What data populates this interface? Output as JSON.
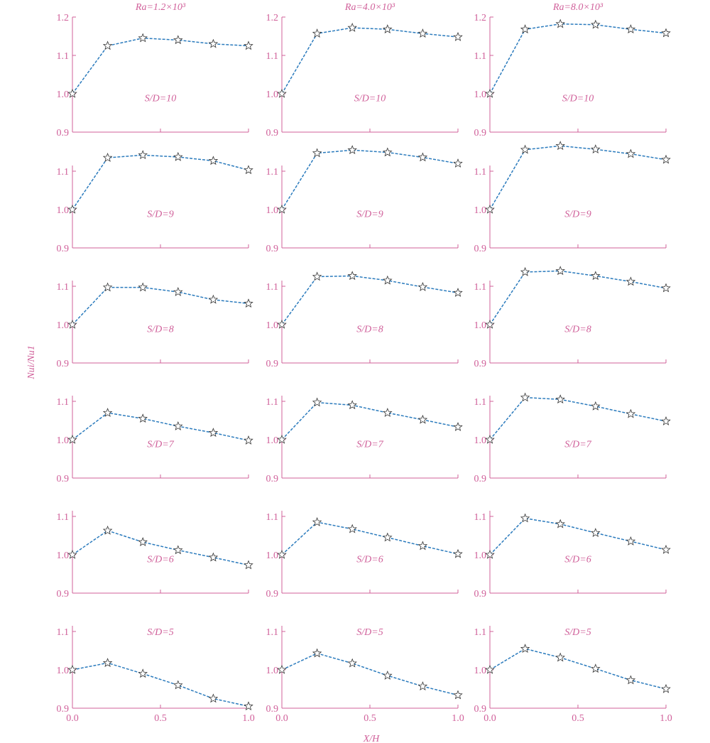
{
  "colors": {
    "axis": "#d0609a",
    "text": "#d0609a",
    "line": "#2b7bbd",
    "marker_stroke": "#333333",
    "marker_fill": "#ffffff"
  },
  "figure": {
    "xlabel": "X/H",
    "ylabel": "Nui/Nu1",
    "column_titles": [
      "Ra=1.2×10³",
      "Ra=4.0×10³",
      "Ra=8.0×10³"
    ]
  },
  "chart_data": {
    "type": "line",
    "marker": "star",
    "line_style": "dashed",
    "x": [
      0.0,
      0.2,
      0.4,
      0.6,
      0.8,
      1.0
    ],
    "xlim": [
      0.0,
      1.0
    ],
    "ylim": [
      0.9,
      1.2
    ],
    "x_ticks": [
      "0.0",
      "0.5",
      "1.0"
    ],
    "y_ticks_top": [
      "0.9",
      "1.0",
      "1.1",
      "1.2"
    ],
    "y_ticks": [
      "0.9",
      "1.0",
      "1.1"
    ],
    "panels": [
      {
        "ra": "Ra=1.2×10³",
        "sd": "S/D=10",
        "values": [
          1.0,
          1.125,
          1.145,
          1.14,
          1.13,
          1.125
        ]
      },
      {
        "ra": "Ra=4.0×10³",
        "sd": "S/D=10",
        "values": [
          1.0,
          1.157,
          1.172,
          1.168,
          1.157,
          1.148
        ]
      },
      {
        "ra": "Ra=8.0×10³",
        "sd": "S/D=10",
        "values": [
          1.0,
          1.168,
          1.182,
          1.18,
          1.168,
          1.158
        ]
      },
      {
        "ra": "Ra=1.2×10³",
        "sd": "S/D=9",
        "values": [
          1.0,
          1.135,
          1.142,
          1.137,
          1.127,
          1.103
        ]
      },
      {
        "ra": "Ra=4.0×10³",
        "sd": "S/D=9",
        "values": [
          1.0,
          1.147,
          1.155,
          1.149,
          1.136,
          1.12
        ]
      },
      {
        "ra": "Ra=8.0×10³",
        "sd": "S/D=9",
        "values": [
          1.0,
          1.156,
          1.166,
          1.157,
          1.145,
          1.13
        ]
      },
      {
        "ra": "Ra=1.2×10³",
        "sd": "S/D=8",
        "values": [
          1.0,
          1.097,
          1.097,
          1.085,
          1.065,
          1.055
        ]
      },
      {
        "ra": "Ra=4.0×10³",
        "sd": "S/D=8",
        "values": [
          1.0,
          1.125,
          1.127,
          1.115,
          1.098,
          1.083
        ]
      },
      {
        "ra": "Ra=8.0×10³",
        "sd": "S/D=8",
        "values": [
          1.0,
          1.137,
          1.14,
          1.127,
          1.112,
          1.095
        ]
      },
      {
        "ra": "Ra=1.2×10³",
        "sd": "S/D=7",
        "values": [
          1.0,
          1.07,
          1.055,
          1.035,
          1.018,
          0.998
        ]
      },
      {
        "ra": "Ra=4.0×10³",
        "sd": "S/D=7",
        "values": [
          1.0,
          1.097,
          1.09,
          1.07,
          1.052,
          1.033
        ]
      },
      {
        "ra": "Ra=8.0×10³",
        "sd": "S/D=7",
        "values": [
          1.0,
          1.11,
          1.105,
          1.087,
          1.067,
          1.048
        ]
      },
      {
        "ra": "Ra=1.2×10³",
        "sd": "S/D=6",
        "values": [
          1.0,
          1.063,
          1.033,
          1.012,
          0.993,
          0.973
        ]
      },
      {
        "ra": "Ra=4.0×10³",
        "sd": "S/D=6",
        "values": [
          1.0,
          1.085,
          1.067,
          1.045,
          1.023,
          1.002
        ]
      },
      {
        "ra": "Ra=8.0×10³",
        "sd": "S/D=6",
        "values": [
          1.0,
          1.095,
          1.08,
          1.057,
          1.035,
          1.013
        ]
      },
      {
        "ra": "Ra=1.2×10³",
        "sd": "S/D=5",
        "values": [
          1.0,
          1.018,
          0.99,
          0.96,
          0.925,
          0.905
        ]
      },
      {
        "ra": "Ra=4.0×10³",
        "sd": "S/D=5",
        "values": [
          1.0,
          1.043,
          1.017,
          0.985,
          0.957,
          0.934
        ]
      },
      {
        "ra": "Ra=8.0×10³",
        "sd": "S/D=5",
        "values": [
          1.0,
          1.055,
          1.032,
          1.003,
          0.973,
          0.95
        ]
      }
    ]
  }
}
